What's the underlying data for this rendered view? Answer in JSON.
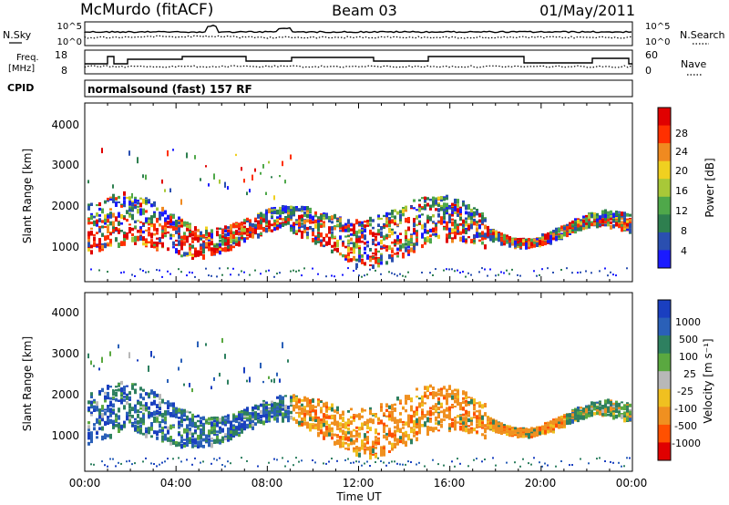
{
  "header": {
    "station": "McMurdo (fitACF)",
    "beam": "Beam 03",
    "date": "01/May/2011"
  },
  "noise_panel": {
    "left_label": "N.Sky",
    "right_label": "N.Search",
    "left_ticks": [
      "10^5",
      "10^0"
    ],
    "right_ticks": [
      "10^5",
      "10^0"
    ]
  },
  "freq_panel": {
    "left_label_1": "Freq.",
    "left_label_2": "[MHz]",
    "left_ticks": [
      "18",
      "8"
    ],
    "right_label": "Nave",
    "right_ticks": [
      "60",
      "0"
    ],
    "cpid_label": "CPID",
    "cpid_value": "normalsound (fast) 157 RF"
  },
  "x_axis": {
    "label": "Time UT",
    "ticks": [
      "00:00",
      "04:00",
      "08:00",
      "12:00",
      "16:00",
      "20:00",
      "00:00"
    ]
  },
  "power_panel": {
    "ylabel": "Slant Range [km]",
    "yticks": [
      "4000",
      "3000",
      "2000",
      "1000"
    ],
    "colorbar_label": "Power [dB]",
    "colorbar_ticks": [
      "28",
      "24",
      "20",
      "16",
      "12",
      "8",
      "4"
    ],
    "colors": [
      "#1a1aff",
      "#2a4fb0",
      "#2e7f4f",
      "#4fa84a",
      "#a8c838",
      "#f0d020",
      "#f08a20",
      "#ff3000",
      "#e00000"
    ]
  },
  "velocity_panel": {
    "ylabel": "Slant Range [km]",
    "yticks": [
      "4000",
      "3000",
      "2000",
      "1000"
    ],
    "colorbar_label": "Velocity [m s⁻¹]",
    "colorbar_ticks": [
      "1000",
      "500",
      "100",
      "25",
      "-25",
      "-100",
      "-500",
      "-1000"
    ],
    "colors": [
      "#1a3fc0",
      "#2a60b8",
      "#2e8060",
      "#5aa840",
      "#b8b8b8",
      "#f0c020",
      "#f09020",
      "#ff5000",
      "#e00000"
    ]
  },
  "chart_data": [
    {
      "type": "line",
      "title": "McMurdo (fitACF) Beam 03 01/May/2011",
      "series": [
        {
          "name": "N.Sky"
        },
        {
          "name": "N.Search"
        }
      ],
      "xlabel": "Time UT",
      "x_range": [
        "00:00",
        "24:00"
      ],
      "ylim": [
        "10^0",
        "10^5"
      ]
    },
    {
      "type": "line",
      "series": [
        {
          "name": "Freq."
        },
        {
          "name": "Nave"
        }
      ],
      "xlabel": "Time UT",
      "ylim_left": [
        8,
        18
      ],
      "ylim_right": [
        0,
        60
      ]
    },
    {
      "type": "heatmap",
      "xlabel": "Time UT",
      "ylabel": "Slant Range [km]",
      "ylim": [
        200,
        4600
      ],
      "x_range": [
        "00:00",
        "24:00"
      ],
      "colorbar": "Power [dB]",
      "color_range": [
        0,
        30
      ]
    },
    {
      "type": "heatmap",
      "xlabel": "Time UT",
      "ylabel": "Slant Range [km]",
      "ylim": [
        200,
        4600
      ],
      "x_range": [
        "00:00",
        "24:00"
      ],
      "colorbar": "Velocity [m s⁻¹]",
      "color_range": [
        -1000,
        1000
      ]
    }
  ]
}
